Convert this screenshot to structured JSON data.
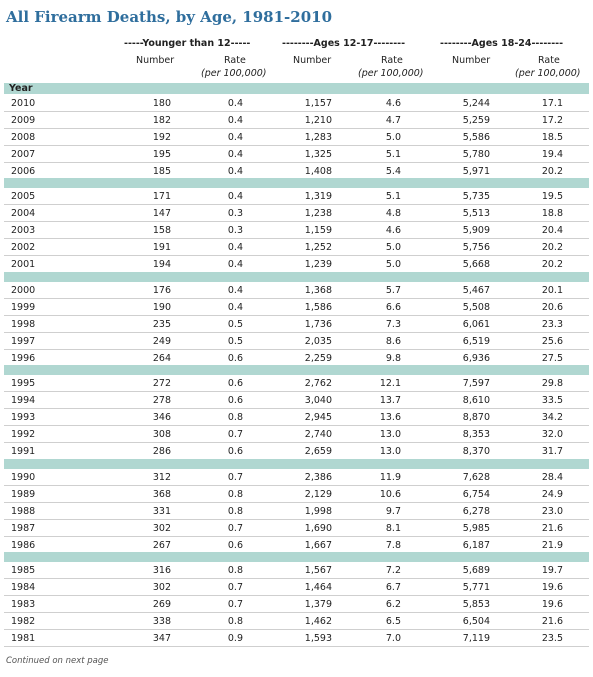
{
  "title": "All Firearm Deaths, by Age, 1981-2010",
  "groups": [
    {
      "label": "-----Younger than 12-----"
    },
    {
      "label": "--------Ages 12-17--------"
    },
    {
      "label": "--------Ages 18-24--------"
    }
  ],
  "subheaders": {
    "number": "Number",
    "rate": "Rate",
    "rate_unit": "(per 100,000)"
  },
  "year_label": "Year",
  "blocks": [
    [
      [
        "2010",
        "180",
        "0.4",
        "1,157",
        "4.6",
        "5,244",
        "17.1"
      ],
      [
        "2009",
        "182",
        "0.4",
        "1,210",
        "4.7",
        "5,259",
        "17.2"
      ],
      [
        "2008",
        "192",
        "0.4",
        "1,283",
        "5.0",
        "5,586",
        "18.5"
      ],
      [
        "2007",
        "195",
        "0.4",
        "1,325",
        "5.1",
        "5,780",
        "19.4"
      ],
      [
        "2006",
        "185",
        "0.4",
        "1,408",
        "5.4",
        "5,971",
        "20.2"
      ]
    ],
    [
      [
        "2005",
        "171",
        "0.4",
        "1,319",
        "5.1",
        "5,735",
        "19.5"
      ],
      [
        "2004",
        "147",
        "0.3",
        "1,238",
        "4.8",
        "5,513",
        "18.8"
      ],
      [
        "2003",
        "158",
        "0.3",
        "1,159",
        "4.6",
        "5,909",
        "20.4"
      ],
      [
        "2002",
        "191",
        "0.4",
        "1,252",
        "5.0",
        "5,756",
        "20.2"
      ],
      [
        "2001",
        "194",
        "0.4",
        "1,239",
        "5.0",
        "5,668",
        "20.2"
      ]
    ],
    [
      [
        "2000",
        "176",
        "0.4",
        "1,368",
        "5.7",
        "5,467",
        "20.1"
      ],
      [
        "1999",
        "190",
        "0.4",
        "1,586",
        "6.6",
        "5,508",
        "20.6"
      ],
      [
        "1998",
        "235",
        "0.5",
        "1,736",
        "7.3",
        "6,061",
        "23.3"
      ],
      [
        "1997",
        "249",
        "0.5",
        "2,035",
        "8.6",
        "6,519",
        "25.6"
      ],
      [
        "1996",
        "264",
        "0.6",
        "2,259",
        "9.8",
        "6,936",
        "27.5"
      ]
    ],
    [
      [
        "1995",
        "272",
        "0.6",
        "2,762",
        "12.1",
        "7,597",
        "29.8"
      ],
      [
        "1994",
        "278",
        "0.6",
        "3,040",
        "13.7",
        "8,610",
        "33.5"
      ],
      [
        "1993",
        "346",
        "0.8",
        "2,945",
        "13.6",
        "8,870",
        "34.2"
      ],
      [
        "1992",
        "308",
        "0.7",
        "2,740",
        "13.0",
        "8,353",
        "32.0"
      ],
      [
        "1991",
        "286",
        "0.6",
        "2,659",
        "13.0",
        "8,370",
        "31.7"
      ]
    ],
    [
      [
        "1990",
        "312",
        "0.7",
        "2,386",
        "11.9",
        "7,628",
        "28.4"
      ],
      [
        "1989",
        "368",
        "0.8",
        "2,129",
        "10.6",
        "6,754",
        "24.9"
      ],
      [
        "1988",
        "331",
        "0.8",
        "1,998",
        "9.7",
        "6,278",
        "23.0"
      ],
      [
        "1987",
        "302",
        "0.7",
        "1,690",
        "8.1",
        "5,985",
        "21.6"
      ],
      [
        "1986",
        "267",
        "0.6",
        "1,667",
        "7.8",
        "6,187",
        "21.9"
      ]
    ],
    [
      [
        "1985",
        "316",
        "0.8",
        "1,567",
        "7.2",
        "5,689",
        "19.7"
      ],
      [
        "1984",
        "302",
        "0.7",
        "1,464",
        "6.7",
        "5,771",
        "19.6"
      ],
      [
        "1983",
        "269",
        "0.7",
        "1,379",
        "6.2",
        "5,853",
        "19.6"
      ],
      [
        "1982",
        "338",
        "0.8",
        "1,462",
        "6.5",
        "6,504",
        "21.6"
      ],
      [
        "1981",
        "347",
        "0.9",
        "1,593",
        "7.0",
        "7,119",
        "23.5"
      ]
    ]
  ],
  "footnote": "Continued on next page"
}
